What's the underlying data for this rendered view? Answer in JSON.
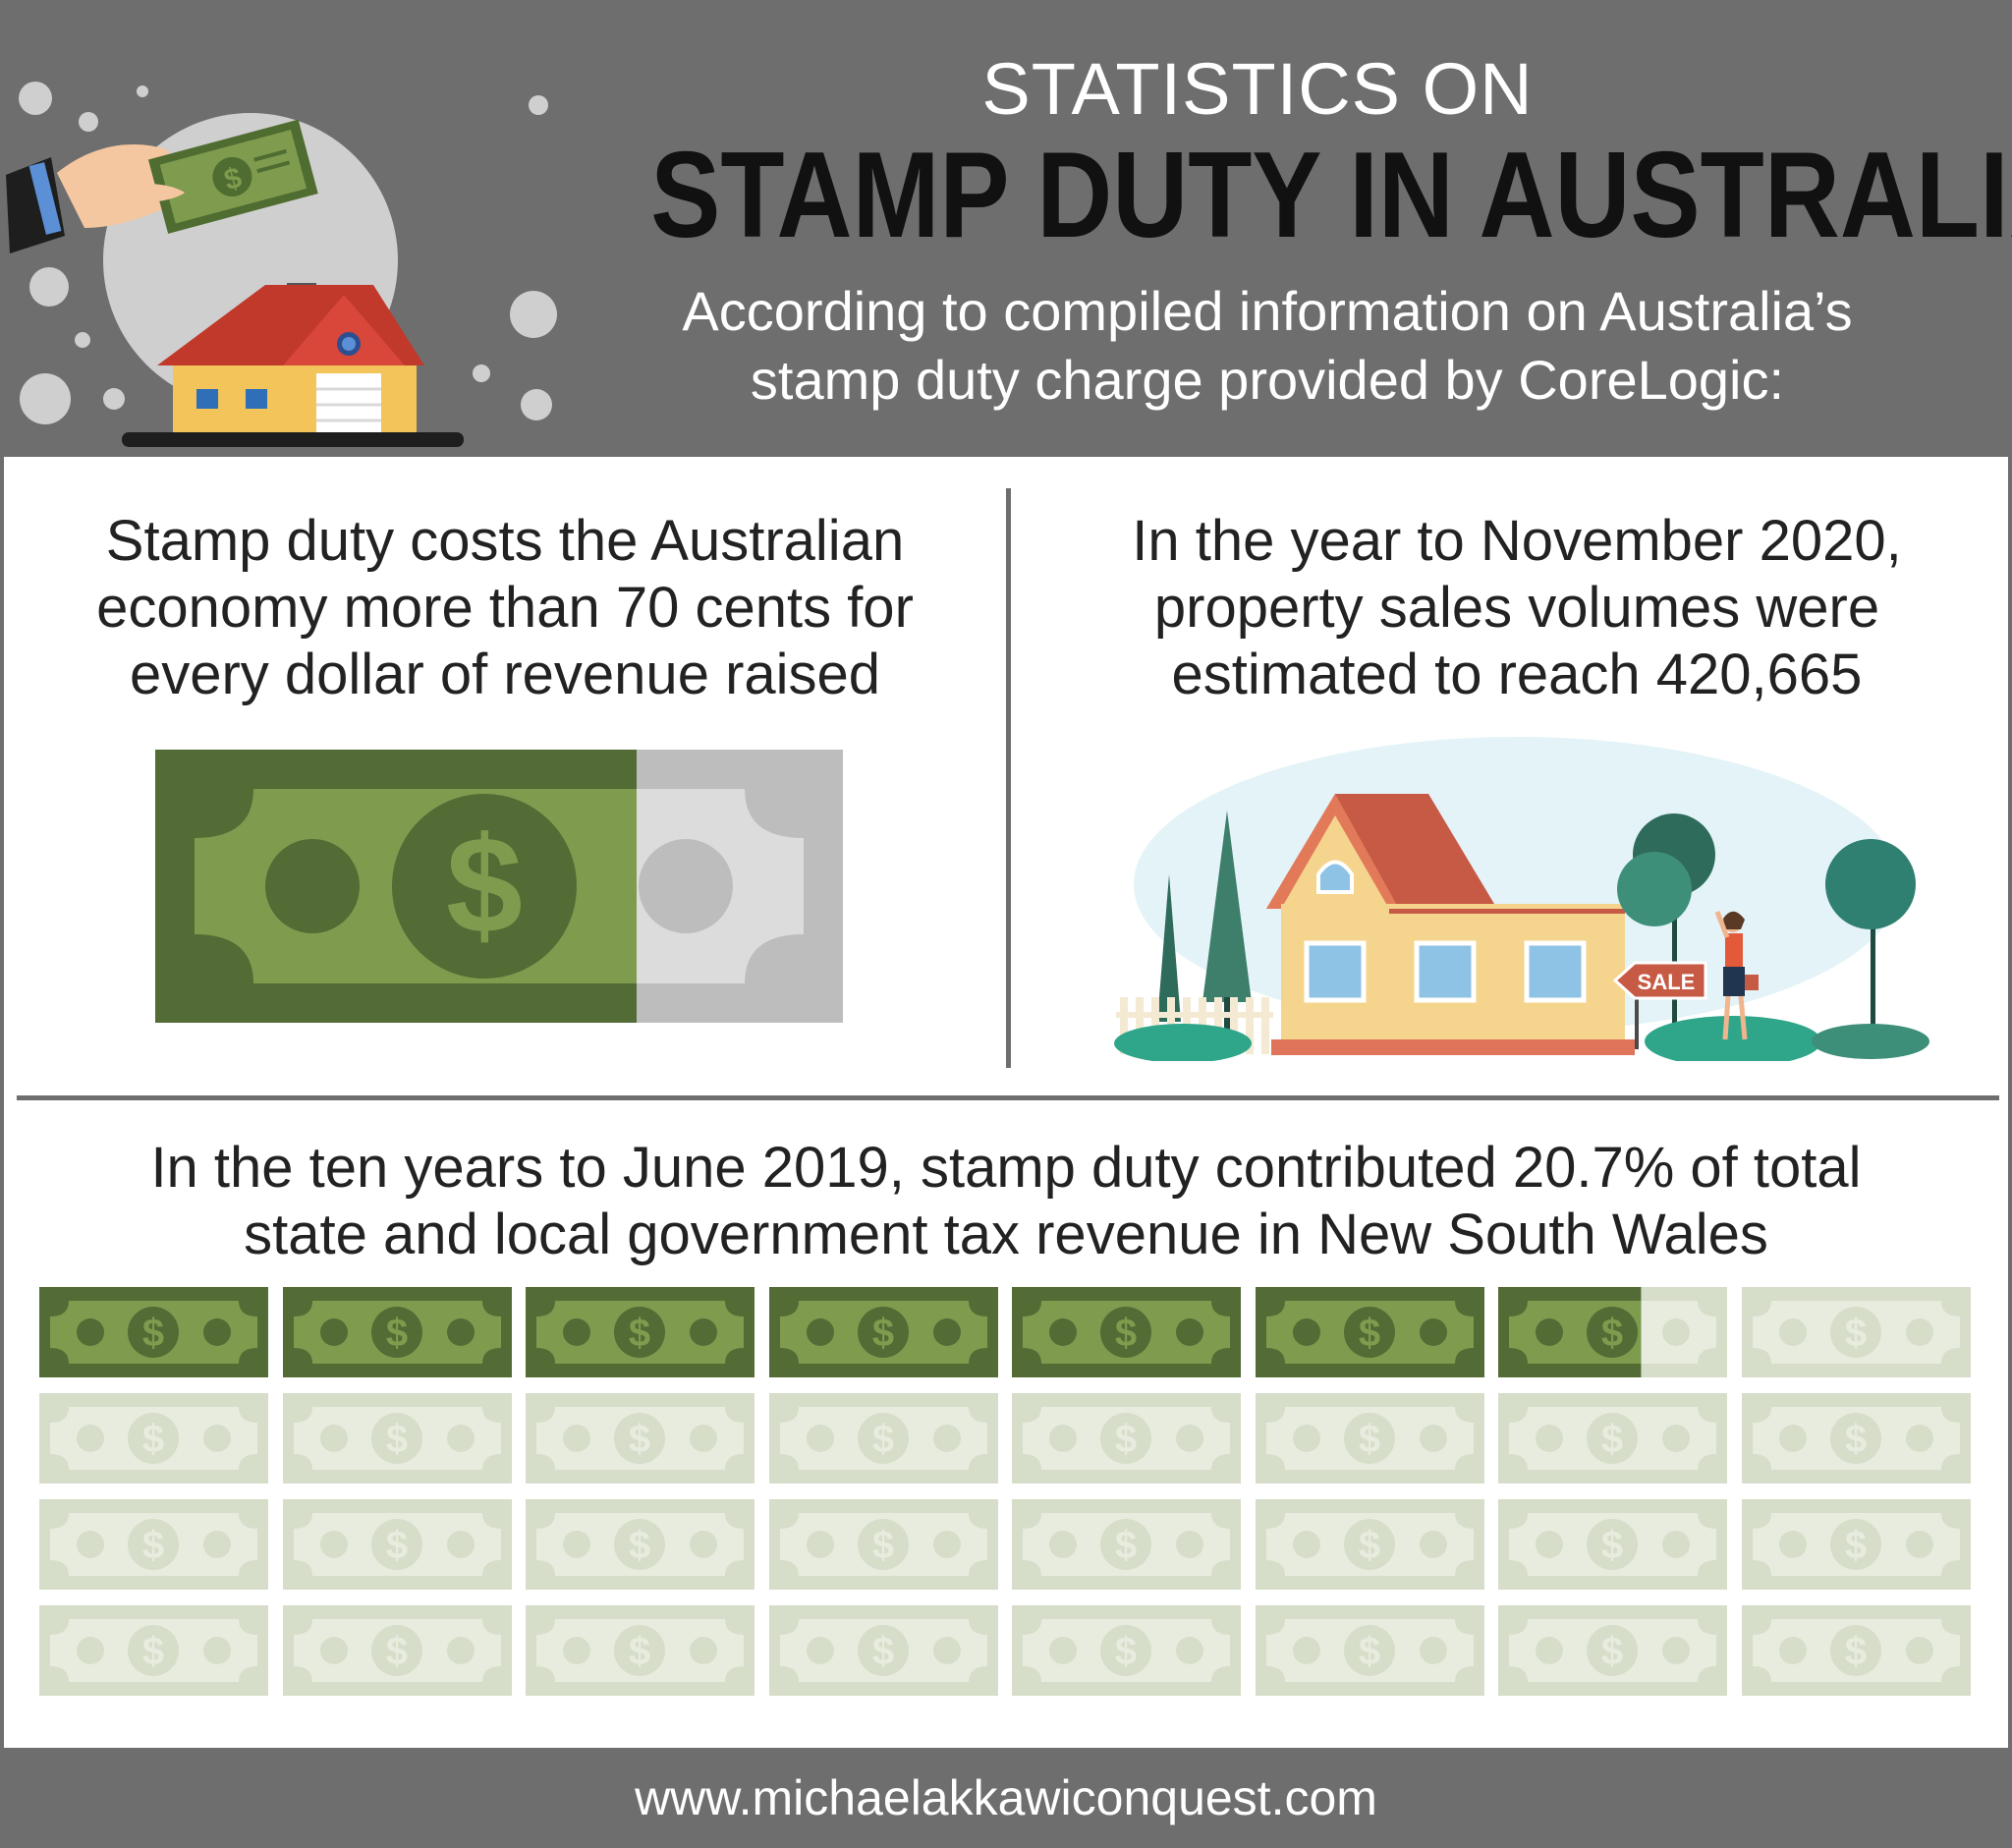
{
  "header": {
    "kicker": "STATISTICS ON",
    "title": "STAMP DUTY IN AUSTRALIA",
    "subtitle_line1": "According to compiled information on Australia’s",
    "subtitle_line2": "stamp duty charge provided by CoreLogic:"
  },
  "stats": {
    "cost": {
      "line1": "Stamp duty costs the Australian",
      "line2": "economy more than 70 cents for",
      "line3": "every dollar of revenue raised",
      "fraction": 0.7
    },
    "sales": {
      "line1": "In the year to November 2020,",
      "line2": "property sales volumes were",
      "line3": "estimated to reach 420,665",
      "sign_label": "SALE"
    },
    "nsw": {
      "line1": "In the ten years to June 2019, stamp duty contributed 20.7% of total",
      "line2": "state and local government tax revenue in New South Wales",
      "percent": 20.7,
      "total_bills": 32
    }
  },
  "colors": {
    "header_bg": "#6e6e6e",
    "bill_dark": "#536b35",
    "bill_light": "#7f9b4e",
    "bill_faded": "#d6ddc9",
    "bill_grey": "#bdbdbd",
    "roof_red": "#c0392b",
    "house_yellow": "#f2c45a"
  },
  "icons": {
    "header": "hand-paying-money-house-icon",
    "bill": "dollar-bill-icon",
    "scene": "house-for-sale-icon"
  },
  "footer": {
    "url": "www.michaelakkawiconquest.com"
  }
}
